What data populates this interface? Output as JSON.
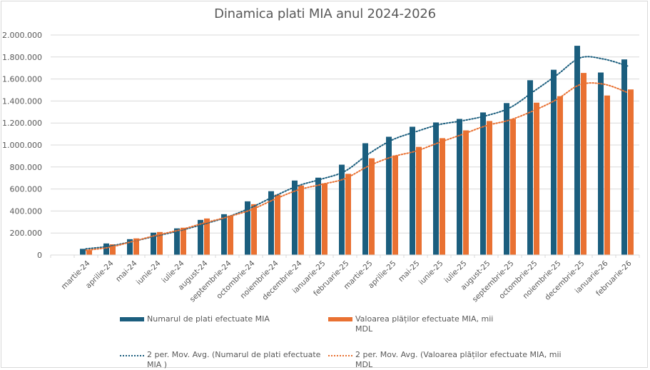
{
  "chart_data": {
    "type": "bar",
    "title": "Dinamica plati MIA anul 2024-2026",
    "xlabel": "",
    "ylabel": "",
    "ylim": [
      0,
      2000000
    ],
    "ytick_values": [
      0,
      200000,
      400000,
      600000,
      800000,
      1000000,
      1200000,
      1400000,
      1600000,
      1800000,
      2000000
    ],
    "ytick_labels": [
      "0",
      "200.000",
      "400.000",
      "600.000",
      "800.000",
      "1.000.000",
      "1.200.000",
      "1.400.000",
      "1.600.000",
      "1.800.000",
      "2.000.000"
    ],
    "grid": true,
    "legend_position": "bottom",
    "leading_empty_category": true,
    "categories": [
      "martie-24",
      "aprilie-24",
      "mai-24",
      "iunie-24",
      "iulie-24",
      "august-24",
      "septembrie-24",
      "octombrie-24",
      "noiembrie-24",
      "decembrie-24",
      "ianuarie-25",
      "februarie-25",
      "martie-25",
      "aprilie-25",
      "mai-25",
      "iunie-25",
      "iulie-25",
      "august-25",
      "septembrie-25",
      "octombrie-25",
      "noiembrie-25",
      "decembrie-25",
      "ianuarie-26",
      "februarie-26"
    ],
    "series": [
      {
        "name": "Numarul de plati efectuate MIA",
        "color": "#1b5e7e",
        "values": [
          56000,
          105000,
          144000,
          203000,
          242000,
          319000,
          371000,
          488000,
          580000,
          677000,
          703000,
          821000,
          1016000,
          1075000,
          1166000,
          1205000,
          1237000,
          1296000,
          1381000,
          1589000,
          1684000,
          1902000,
          1659000,
          1778000
        ]
      },
      {
        "name": "Valoarea plăților efectuate MIA, mii MDL",
        "color": "#e97132",
        "values": [
          43000,
          97000,
          151000,
          209000,
          248000,
          332000,
          358000,
          462000,
          549000,
          632000,
          651000,
          738000,
          879000,
          905000,
          983000,
          1062000,
          1133000,
          1218000,
          1237000,
          1385000,
          1444000,
          1655000,
          1450000,
          1505000
        ]
      }
    ],
    "trendlines": [
      {
        "name": "2 per. Mov. Avg. (Numarul de plati efectuate MIA )",
        "type": "moving_average",
        "period": 2,
        "of_series": 0,
        "color": "#1b5e7e",
        "style": "dotted"
      },
      {
        "name": "2 per. Mov. Avg. (Valoarea plăților efectuate MIA, mii MDL)",
        "type": "moving_average",
        "period": 2,
        "of_series": 1,
        "color": "#e97132",
        "style": "dotted"
      }
    ]
  },
  "legend": {
    "items": [
      {
        "label": "Numarul de plati efectuate MIA",
        "kind": "bar",
        "color": "#1b5e7e"
      },
      {
        "label": "Valoarea plăților efectuate MIA, mii MDL",
        "kind": "bar",
        "color": "#e97132"
      },
      {
        "label": "2 per. Mov. Avg. (Numarul de plati efectuate MIA )",
        "kind": "dotted",
        "color": "#1b5e7e"
      },
      {
        "label": "2 per. Mov. Avg. (Valoarea plăților efectuate MIA, mii MDL",
        "kind": "dotted",
        "color": "#e97132"
      }
    ]
  }
}
